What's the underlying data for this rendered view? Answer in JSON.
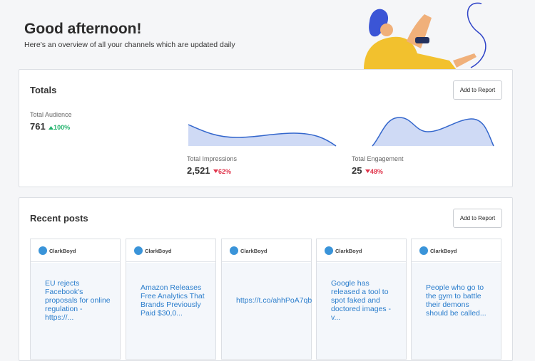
{
  "header": {
    "title": "Good afternoon!",
    "subtitle": "Here's an overview of all your channels which are updated daily"
  },
  "totals": {
    "title": "Totals",
    "button": "Add to Report",
    "metrics": [
      {
        "label": "Total Audience",
        "value": "761",
        "change": "100%"
      },
      {
        "label": "Total Impressions",
        "value": "2,521",
        "change": "62%"
      },
      {
        "label": "Total Engagement",
        "value": "25",
        "change": "48%"
      }
    ]
  },
  "recent_posts": {
    "title": "Recent posts",
    "button": "Add to Report",
    "posts": [
      {
        "author": "ClarkBoyd",
        "text": "EU rejects Facebook's proposals for online regulation - https://..."
      },
      {
        "author": "ClarkBoyd",
        "text": "Amazon Releases Free Analytics That Brands Previously Paid $30,0..."
      },
      {
        "author": "ClarkBoyd",
        "text": "https://t.co/ahhPoA7qb"
      },
      {
        "author": "ClarkBoyd",
        "text": "Google has released a tool to spot faked and doctored images - v..."
      },
      {
        "author": "ClarkBoyd",
        "text": "People who go to the gym to battle their demons should be called..."
      }
    ]
  }
}
